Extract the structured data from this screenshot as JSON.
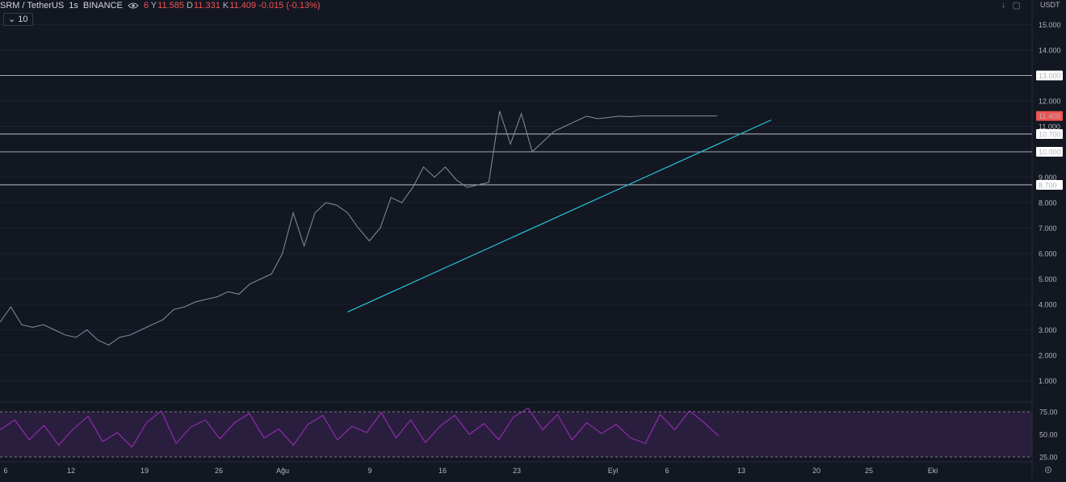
{
  "header": {
    "symbol": "SRM / TetherUS",
    "timeframe": "1s",
    "exchange": "BINANCE",
    "ohlc": {
      "open_label": "6",
      "high_label": "Y",
      "high": "11.585",
      "low_label": "D",
      "low": "11.331",
      "close_label": "K",
      "close": "11.409",
      "change": "-0.015 (-0.13%)"
    },
    "volume_chip": "10",
    "currency": "USDT"
  },
  "icons": [
    "eye-icon",
    "down-arrow-icon",
    "maximize-icon",
    "settings-icon"
  ],
  "colors": {
    "background": "#131722",
    "trendline": "#26c6da",
    "price_badge": "#ef5350",
    "rsi": "#a02ec0",
    "rsi_band": "#2a1e3e",
    "horizontal_lines": "#d1d4dc"
  },
  "price_axis": {
    "ticks": [
      "15.000",
      "14.000",
      "13.000",
      "12.000",
      "11.409",
      "11.000",
      "10.700",
      "10.000",
      "9.000",
      "8.700",
      "8.000",
      "7.000",
      "6.000",
      "5.000",
      "4.000",
      "3.000",
      "2.000",
      "1.000"
    ],
    "highlighted": {
      "13.000": "level",
      "11.409": "current",
      "10.700": "level",
      "10.000": "level",
      "8.700": "level"
    }
  },
  "rsi_axis": {
    "ticks": [
      "75.00",
      "50.00",
      "25.00"
    ]
  },
  "time_axis": {
    "labels": [
      "6",
      "12",
      "19",
      "26",
      "Ağu",
      "9",
      "16",
      "23",
      "Eyl",
      "6",
      "13",
      "20",
      "25",
      "Eki"
    ]
  },
  "chart_data": {
    "type": "line",
    "title": "SRM / TetherUS",
    "x_unit": "days",
    "horizontal_levels": [
      13.0,
      10.7,
      10.0,
      8.7
    ],
    "current_price": 11.409,
    "trendline": {
      "from": {
        "x": 32,
        "y": 3.7
      },
      "to": {
        "x": 71,
        "y": 11.25
      }
    },
    "series": [
      {
        "x": [
          0,
          1,
          2,
          3,
          4,
          5,
          6,
          7,
          8,
          9,
          10,
          11,
          12,
          13,
          14,
          15,
          16,
          17,
          18,
          19,
          20,
          21,
          22,
          23,
          24,
          25,
          26,
          27,
          28,
          29,
          30,
          31,
          32,
          33,
          34,
          35,
          36,
          37,
          38,
          39,
          40,
          41,
          42,
          43,
          44,
          45,
          46,
          47,
          48,
          49,
          50,
          51,
          52,
          53,
          54,
          55,
          56,
          57,
          58,
          59,
          60,
          61,
          62,
          63,
          64,
          65,
          66,
          67,
          68,
          69,
          70
        ],
        "y": [
          3.3,
          3.9,
          3.2,
          3.1,
          3.2,
          3.0,
          2.8,
          2.7,
          3.0,
          2.6,
          2.4,
          2.7,
          2.8,
          3.0,
          3.2,
          3.4,
          3.8,
          3.9,
          4.1,
          4.2,
          4.3,
          4.5,
          4.4,
          4.8,
          5.0,
          5.2,
          6.0,
          7.6,
          6.3,
          7.6,
          8.0,
          7.9,
          7.6,
          7.0,
          6.5,
          7.0,
          8.2,
          8.0,
          8.6,
          9.4,
          9.0,
          9.4,
          8.9,
          8.6,
          8.7,
          8.8,
          11.6,
          10.3,
          11.5,
          10.0,
          10.4,
          10.8,
          11.0,
          11.2,
          11.4,
          11.3,
          11.35,
          11.4,
          11.38,
          11.409,
          11.409,
          11.409,
          11.409,
          11.409,
          11.409,
          11.409,
          11.409,
          11.409,
          11.409,
          11.409,
          11.409
        ]
      }
    ],
    "rsi_series": {
      "range": [
        0,
        100
      ],
      "values": [
        55,
        66,
        44,
        60,
        38,
        56,
        70,
        42,
        52,
        36,
        63,
        76,
        40,
        58,
        66,
        45,
        63,
        73,
        46,
        56,
        38,
        61,
        71,
        44,
        59,
        52,
        74,
        46,
        66,
        41,
        59,
        71,
        50,
        62,
        44,
        69,
        79,
        55,
        72,
        44,
        63,
        51,
        61,
        46,
        40,
        72,
        55,
        76,
        63,
        48
      ]
    }
  }
}
